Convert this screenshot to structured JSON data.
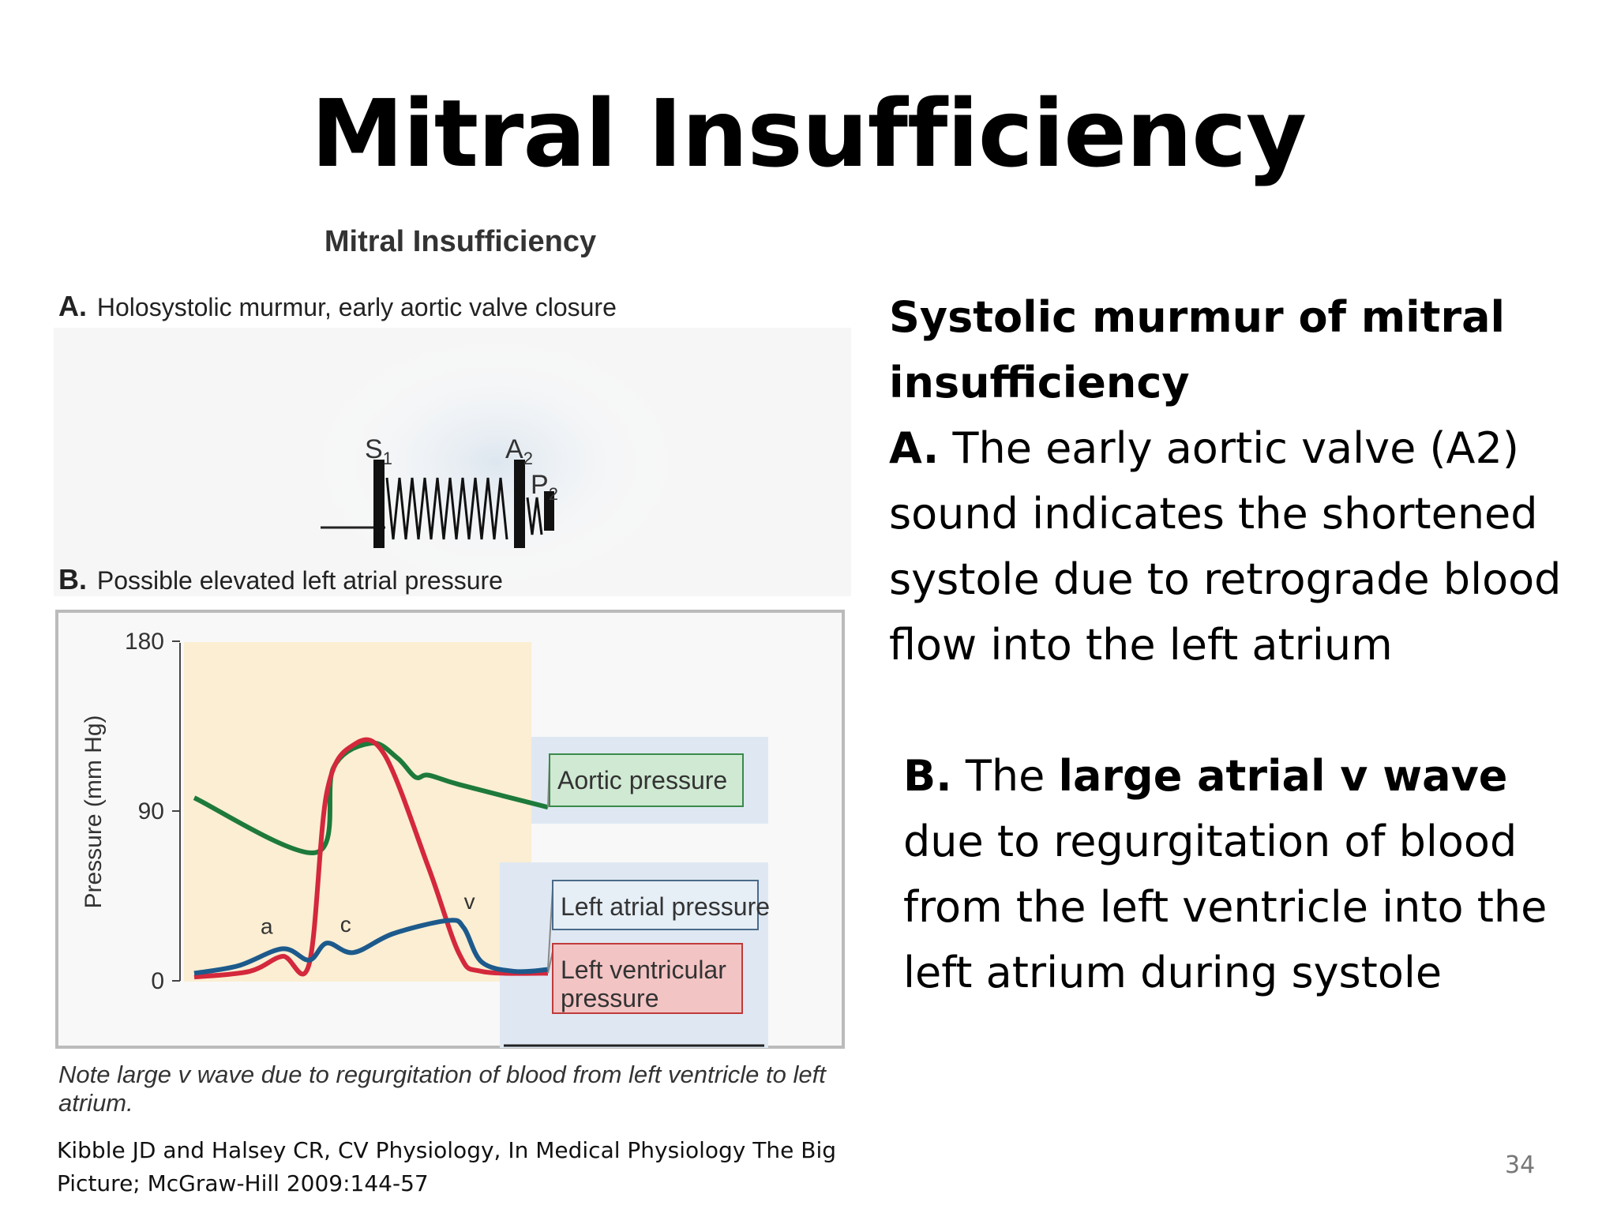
{
  "slide": {
    "title": "Mitral Insufficiency",
    "page_number": "34"
  },
  "figure": {
    "title": "Mitral Insufficiency",
    "panel_a": {
      "letter": "A.",
      "label": "Holosystolic murmur, early aortic valve closure",
      "s1_label": "S",
      "s1_sub": "1",
      "a2_label": "A",
      "a2_sub": "2",
      "p2_label": "P",
      "p2_sub": "2"
    },
    "panel_b": {
      "letter": "B.",
      "label": "Possible elevated left atrial pressure"
    },
    "note": "Note large v wave due to regurgitation of blood from left ventricle to left atrium."
  },
  "chart_data": {
    "type": "line",
    "ylabel": "Pressure (mm Hg)",
    "xlabel": "",
    "title": "",
    "ylim": [
      0,
      180
    ],
    "yticks": [
      "180",
      "90",
      "0"
    ],
    "series": [
      {
        "name": "Aortic pressure",
        "color": "#1e7a3a",
        "points": [
          [
            0,
            97
          ],
          [
            0.55,
            68
          ],
          [
            0.63,
            113
          ],
          [
            0.8,
            126
          ],
          [
            0.92,
            118
          ],
          [
            1.0,
            108
          ],
          [
            1.06,
            109
          ],
          [
            1.2,
            104
          ],
          [
            1.6,
            92
          ]
        ]
      },
      {
        "name": "Left ventricular pressure",
        "color": "#d4283c",
        "points": [
          [
            0,
            2
          ],
          [
            0.25,
            5
          ],
          [
            0.4,
            13
          ],
          [
            0.52,
            9
          ],
          [
            0.6,
            100
          ],
          [
            0.72,
            125
          ],
          [
            0.86,
            120
          ],
          [
            1.06,
            60
          ],
          [
            1.2,
            14
          ],
          [
            1.3,
            5
          ],
          [
            1.6,
            4
          ]
        ]
      },
      {
        "name": "Left atrial pressure",
        "color": "#1d5a8c",
        "points": [
          [
            0,
            4
          ],
          [
            0.2,
            8
          ],
          [
            0.4,
            17
          ],
          [
            0.52,
            11
          ],
          [
            0.6,
            20
          ],
          [
            0.72,
            15
          ],
          [
            0.9,
            25
          ],
          [
            1.15,
            32
          ],
          [
            1.22,
            28
          ],
          [
            1.3,
            10
          ],
          [
            1.45,
            5
          ],
          [
            1.6,
            6
          ]
        ]
      }
    ],
    "annotations": [
      "a",
      "c",
      "v"
    ],
    "legend": [
      "Aortic pressure",
      "Left atrial pressure",
      "Left ventricular pressure"
    ],
    "systole_shading": true
  },
  "right_text": {
    "heading": "Systolic murmur of mitral insufficiency",
    "a_letter": "A.",
    "a_text": " The early aortic valve (A2) sound indicates the shortened systole due to retrograde blood flow into the left atrium",
    "b_letter": "B.",
    "b_pre": " The ",
    "b_bold": "large atrial v wave",
    "b_post": " due to regurgitation of blood from the left ventricle into the left atrium during systole"
  },
  "citation": "Kibble JD and Halsey CR, CV Physiology, In Medical Physiology The Big Picture; McGraw-Hill 2009:144-57",
  "colors": {
    "shading": "#fbeed3",
    "legend_bg": "#dfe8f2",
    "aortic_box": "#cfe9d2",
    "atrial_box": "#e6eef6",
    "ventricular_box": "#f3c4c4"
  }
}
